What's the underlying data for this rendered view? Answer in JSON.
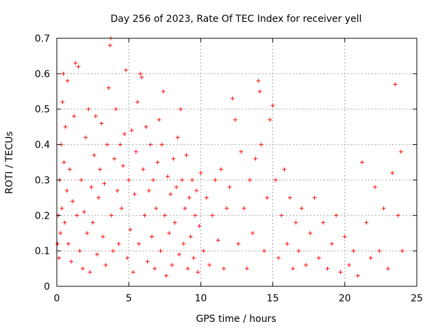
{
  "chart_data": {
    "type": "scatter",
    "title": "Day 256 of 2023, Rate Of TEC Index for receiver yell",
    "xlabel": "GPS time / hours",
    "ylabel": "ROTI / TECUs",
    "xlim": [
      0,
      25
    ],
    "ylim": [
      0,
      0.7
    ],
    "xticks": [
      "0",
      "5",
      "10",
      "15",
      "20",
      "25"
    ],
    "yticks": [
      "0",
      "0.1",
      "0.2",
      "0.3",
      "0.4",
      "0.5",
      "0.6",
      "0.7"
    ],
    "grid": true,
    "marker": "plus",
    "color": "#ff0000",
    "series": [
      {
        "points": [
          [
            0.05,
            0.12
          ],
          [
            0.1,
            0.2
          ],
          [
            0.15,
            0.08
          ],
          [
            0.2,
            0.3
          ],
          [
            0.25,
            0.15
          ],
          [
            0.3,
            0.4
          ],
          [
            0.35,
            0.22
          ],
          [
            0.4,
            0.52
          ],
          [
            0.45,
            0.6
          ],
          [
            0.5,
            0.35
          ],
          [
            0.55,
            0.18
          ],
          [
            0.6,
            0.45
          ],
          [
            0.7,
            0.27
          ],
          [
            0.75,
            0.58
          ],
          [
            0.8,
            0.12
          ],
          [
            0.9,
            0.33
          ],
          [
            1.0,
            0.07
          ],
          [
            1.1,
            0.24
          ],
          [
            1.2,
            0.48
          ],
          [
            1.3,
            0.63
          ],
          [
            1.4,
            0.2
          ],
          [
            1.5,
            0.62
          ],
          [
            1.6,
            0.1
          ],
          [
            1.7,
            0.3
          ],
          [
            1.8,
            0.05
          ],
          [
            1.9,
            0.21
          ],
          [
            2.0,
            0.42
          ],
          [
            2.1,
            0.15
          ],
          [
            2.2,
            0.5
          ],
          [
            2.3,
            0.04
          ],
          [
            2.4,
            0.28
          ],
          [
            2.5,
            0.18
          ],
          [
            2.6,
            0.37
          ],
          [
            2.7,
            0.48
          ],
          [
            2.8,
            0.09
          ],
          [
            2.9,
            0.25
          ],
          [
            3.0,
            0.33
          ],
          [
            3.1,
            0.46
          ],
          [
            3.2,
            0.14
          ],
          [
            3.3,
            0.29
          ],
          [
            3.4,
            0.06
          ],
          [
            3.5,
            0.4
          ],
          [
            3.6,
            0.56
          ],
          [
            3.7,
            0.68
          ],
          [
            3.75,
            0.7
          ],
          [
            3.8,
            0.2
          ],
          [
            3.9,
            0.1
          ],
          [
            4.0,
            0.36
          ],
          [
            4.1,
            0.5
          ],
          [
            4.2,
            0.27
          ],
          [
            4.3,
            0.12
          ],
          [
            4.4,
            0.4
          ],
          [
            4.5,
            0.22
          ],
          [
            4.6,
            0.34
          ],
          [
            4.7,
            0.43
          ],
          [
            4.8,
            0.61
          ],
          [
            4.9,
            0.08
          ],
          [
            5.0,
            0.3
          ],
          [
            5.1,
            0.16
          ],
          [
            5.2,
            0.44
          ],
          [
            5.3,
            0.04
          ],
          [
            5.4,
            0.26
          ],
          [
            5.5,
            0.38
          ],
          [
            5.6,
            0.52
          ],
          [
            5.7,
            0.12
          ],
          [
            5.8,
            0.6
          ],
          [
            5.9,
            0.59
          ],
          [
            6.0,
            0.33
          ],
          [
            6.1,
            0.2
          ],
          [
            6.2,
            0.45
          ],
          [
            6.3,
            0.07
          ],
          [
            6.4,
            0.27
          ],
          [
            6.5,
            0.4
          ],
          [
            6.6,
            0.14
          ],
          [
            6.7,
            0.3
          ],
          [
            6.8,
            0.05
          ],
          [
            6.9,
            0.22
          ],
          [
            7.0,
            0.35
          ],
          [
            7.1,
            0.47
          ],
          [
            7.2,
            0.1
          ],
          [
            7.3,
            0.4
          ],
          [
            7.4,
            0.55
          ],
          [
            7.5,
            0.2
          ],
          [
            7.6,
            0.03
          ],
          [
            7.7,
            0.31
          ],
          [
            7.8,
            0.15
          ],
          [
            7.9,
            0.26
          ],
          [
            8.0,
            0.06
          ],
          [
            8.1,
            0.36
          ],
          [
            8.2,
            0.18
          ],
          [
            8.3,
            0.28
          ],
          [
            8.4,
            0.42
          ],
          [
            8.5,
            0.09
          ],
          [
            8.6,
            0.5
          ],
          [
            8.7,
            0.3
          ],
          [
            8.8,
            0.12
          ],
          [
            8.9,
            0.22
          ],
          [
            9.0,
            0.37
          ],
          [
            9.1,
            0.05
          ],
          [
            9.2,
            0.25
          ],
          [
            9.3,
            0.14
          ],
          [
            9.4,
            0.3
          ],
          [
            9.5,
            0.08
          ],
          [
            9.6,
            0.2
          ],
          [
            9.7,
            0.27
          ],
          [
            9.8,
            0.04
          ],
          [
            9.9,
            0.17
          ],
          [
            10.0,
            0.32
          ],
          [
            10.2,
            0.1
          ],
          [
            10.4,
            0.25
          ],
          [
            10.6,
            0.06
          ],
          [
            10.8,
            0.2
          ],
          [
            11.0,
            0.3
          ],
          [
            11.2,
            0.13
          ],
          [
            11.4,
            0.33
          ],
          [
            11.6,
            0.05
          ],
          [
            11.8,
            0.22
          ],
          [
            12.0,
            0.28
          ],
          [
            12.2,
            0.53
          ],
          [
            12.4,
            0.47
          ],
          [
            12.6,
            0.12
          ],
          [
            12.8,
            0.38
          ],
          [
            13.0,
            0.22
          ],
          [
            13.2,
            0.05
          ],
          [
            13.4,
            0.3
          ],
          [
            13.6,
            0.15
          ],
          [
            13.8,
            0.36
          ],
          [
            14.0,
            0.58
          ],
          [
            14.1,
            0.55
          ],
          [
            14.2,
            0.4
          ],
          [
            14.4,
            0.1
          ],
          [
            14.6,
            0.25
          ],
          [
            14.8,
            0.47
          ],
          [
            15.0,
            0.51
          ],
          [
            15.2,
            0.3
          ],
          [
            15.4,
            0.08
          ],
          [
            15.6,
            0.2
          ],
          [
            15.8,
            0.33
          ],
          [
            16.0,
            0.12
          ],
          [
            16.2,
            0.25
          ],
          [
            16.4,
            0.05
          ],
          [
            16.6,
            0.18
          ],
          [
            16.8,
            0.1
          ],
          [
            17.0,
            0.22
          ],
          [
            17.3,
            0.06
          ],
          [
            17.6,
            0.15
          ],
          [
            17.9,
            0.25
          ],
          [
            18.2,
            0.08
          ],
          [
            18.5,
            0.18
          ],
          [
            18.8,
            0.05
          ],
          [
            19.1,
            0.12
          ],
          [
            19.4,
            0.2
          ],
          [
            19.7,
            0.04
          ],
          [
            20.0,
            0.14
          ],
          [
            20.3,
            0.06
          ],
          [
            20.6,
            0.1
          ],
          [
            20.9,
            0.03
          ],
          [
            21.2,
            0.35
          ],
          [
            21.5,
            0.18
          ],
          [
            21.8,
            0.08
          ],
          [
            22.1,
            0.28
          ],
          [
            22.4,
            0.1
          ],
          [
            22.7,
            0.22
          ],
          [
            23.0,
            0.05
          ],
          [
            23.3,
            0.32
          ],
          [
            23.5,
            0.57
          ],
          [
            23.7,
            0.2
          ],
          [
            23.9,
            0.38
          ],
          [
            24.0,
            0.1
          ]
        ]
      }
    ]
  }
}
